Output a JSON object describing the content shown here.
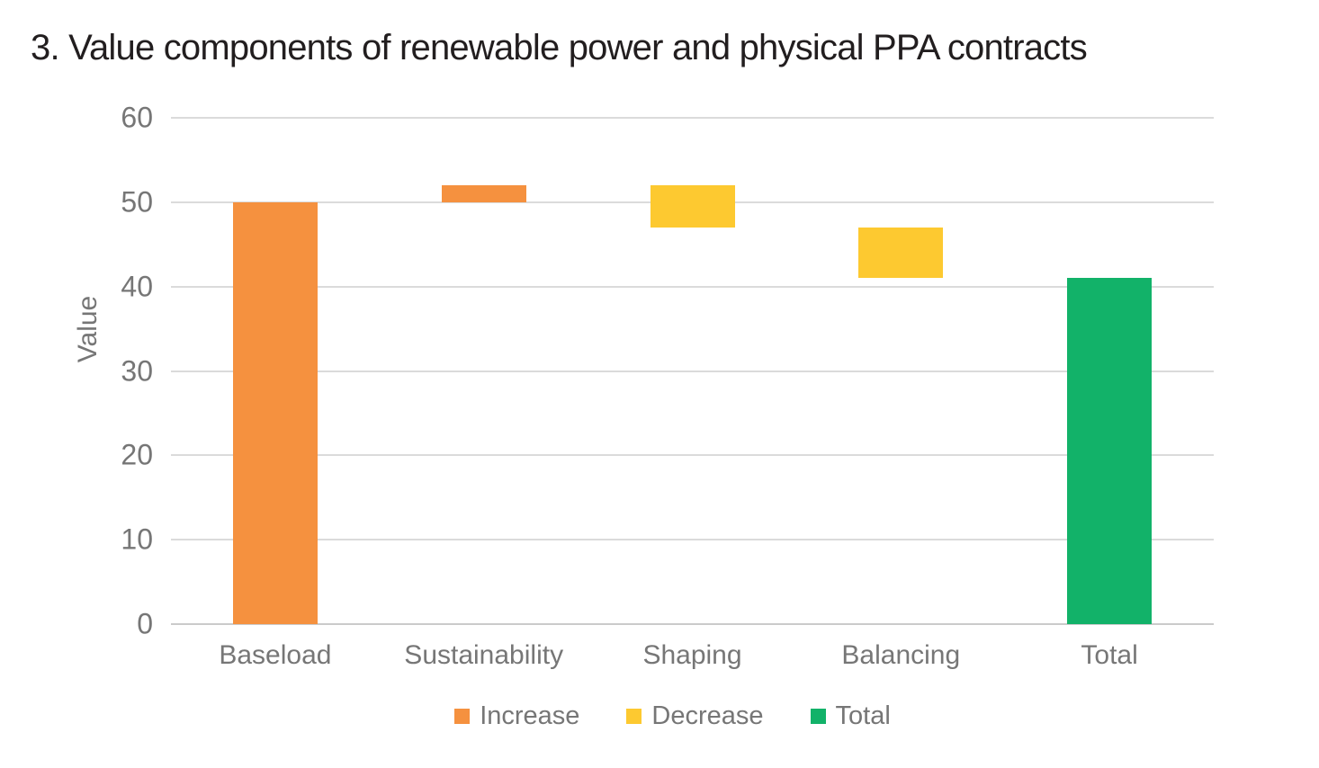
{
  "chart_data": {
    "type": "bar",
    "subtype": "waterfall",
    "title": "3. Value components of renewable power and physical PPA contracts",
    "xlabel": "",
    "ylabel": "Value",
    "ylim": [
      0,
      60
    ],
    "yticks": [
      0,
      10,
      20,
      30,
      40,
      50,
      60
    ],
    "grid": true,
    "categories": [
      "Baseload",
      "Sustainability",
      "Shaping",
      "Balancing",
      "Total"
    ],
    "bars": [
      {
        "category": "Baseload",
        "segment": "increase",
        "start": 0,
        "end": 50,
        "delta": 50
      },
      {
        "category": "Sustainability",
        "segment": "increase",
        "start": 50,
        "end": 52,
        "delta": 2
      },
      {
        "category": "Shaping",
        "segment": "decrease",
        "start": 52,
        "end": 47,
        "delta": -5
      },
      {
        "category": "Balancing",
        "segment": "decrease",
        "start": 47,
        "end": 41,
        "delta": -6
      },
      {
        "category": "Total",
        "segment": "total",
        "start": 0,
        "end": 41,
        "delta": 41
      }
    ],
    "colors": {
      "increase": "#F5913F",
      "decrease": "#FDC930",
      "total": "#12B269"
    },
    "legend": [
      {
        "label": "Increase",
        "color_key": "increase"
      },
      {
        "label": "Decrease",
        "color_key": "decrease"
      },
      {
        "label": "Total",
        "color_key": "total"
      }
    ],
    "legend_position": "bottom",
    "gridline_color": "#DBDBDB",
    "zeroline_color": "#CBCBCB",
    "axis_text_color": "#767676",
    "title_color": "#221E1F"
  }
}
